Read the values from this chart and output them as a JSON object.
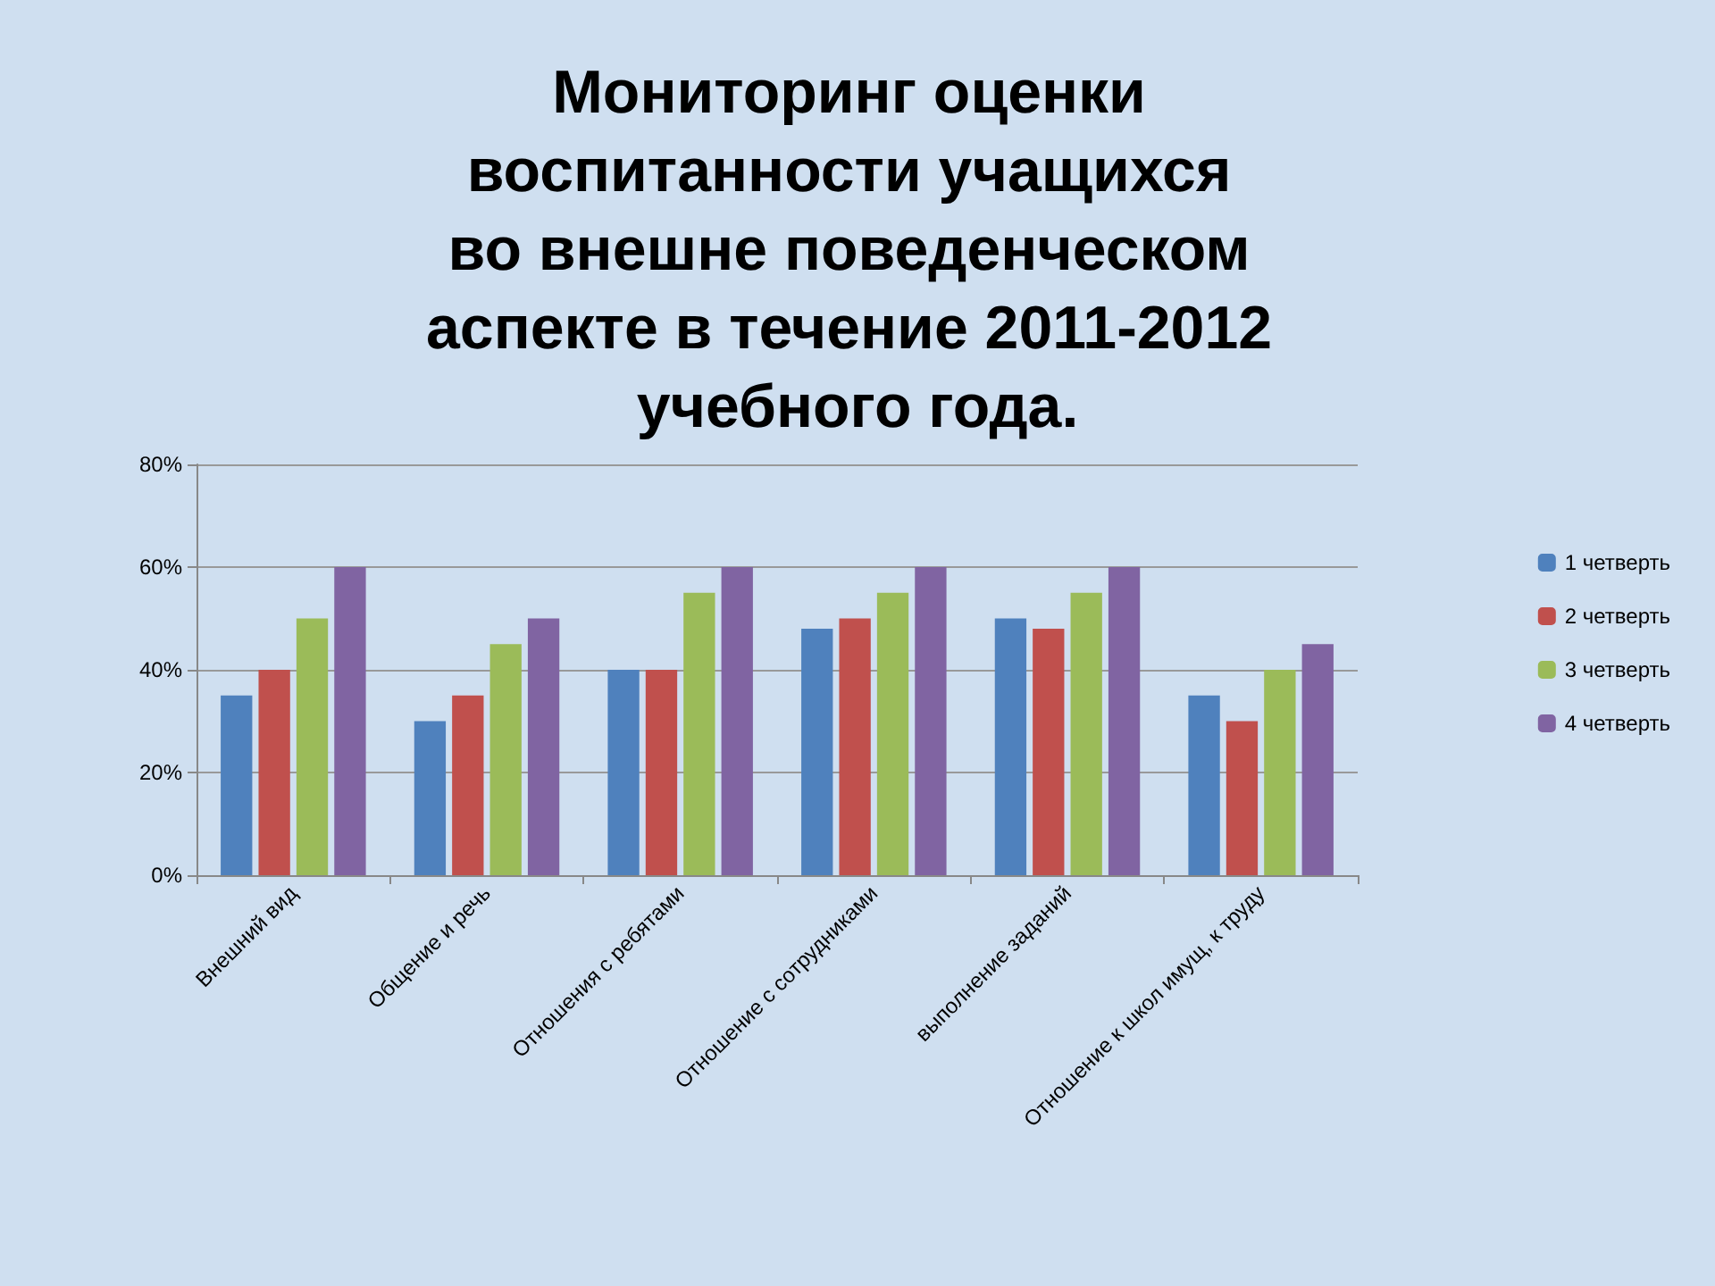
{
  "chart_data": {
    "type": "bar",
    "title": "Мониторинг оценки воспитанности учащихся во внешне поведенческом аспекте в течение 2011-2012 учебного года.",
    "categories": [
      "Внешний вид",
      "Общение и речь",
      "Отношения с ребятами",
      "Отношение с сотрудниками",
      "выполнение заданий",
      "Отношение к школ имущ, к труду"
    ],
    "series": [
      {
        "name": "1 четверть",
        "color": "#4f81bd",
        "values": [
          35,
          30,
          40,
          48,
          50,
          35
        ]
      },
      {
        "name": "2 четверть",
        "color": "#c0504d",
        "values": [
          40,
          35,
          40,
          50,
          48,
          30
        ]
      },
      {
        "name": "3 четверть",
        "color": "#9bbb59",
        "values": [
          50,
          45,
          55,
          55,
          55,
          40
        ]
      },
      {
        "name": "4 четверть",
        "color": "#8064a2",
        "values": [
          60,
          50,
          60,
          60,
          60,
          45
        ]
      }
    ],
    "ylim": [
      0,
      80
    ],
    "yticks": [
      {
        "value": 0,
        "label": "0%"
      },
      {
        "value": 20,
        "label": "20%"
      },
      {
        "value": 40,
        "label": "40%"
      },
      {
        "value": 60,
        "label": "60%"
      },
      {
        "value": 80,
        "label": "80%"
      }
    ],
    "grid": "y",
    "legend": "right"
  }
}
